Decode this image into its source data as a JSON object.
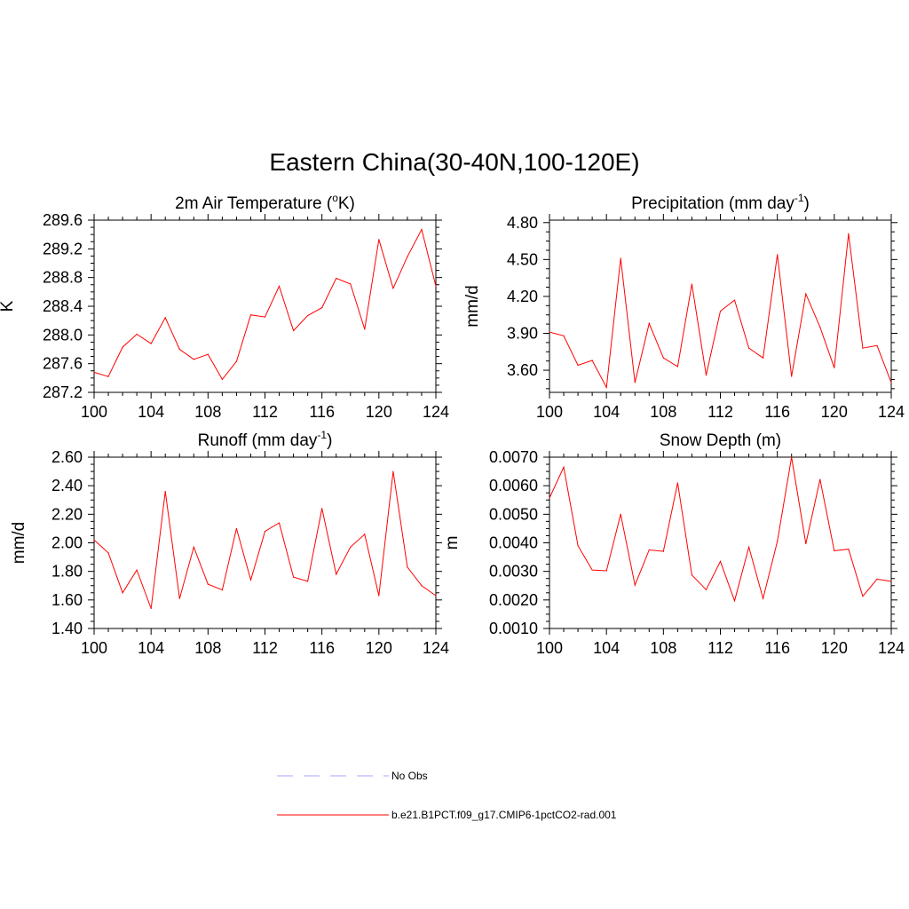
{
  "title": "Eastern China(30-40N,100-120E)",
  "chart_data": [
    {
      "type": "line",
      "title": "2m Air Temperature (",
      "title_sup": "o",
      "title_after": "K)",
      "xlabel": "",
      "ylabel": "K",
      "xlim": [
        100,
        124
      ],
      "ylim": [
        287.2,
        289.6
      ],
      "xticks": [
        "100",
        "104",
        "108",
        "112",
        "116",
        "120",
        "124"
      ],
      "yticks": [
        "287.2",
        "287.6",
        "288.0",
        "288.4",
        "288.8",
        "289.2",
        "289.6"
      ],
      "x": [
        100,
        101,
        102,
        103,
        104,
        105,
        106,
        107,
        108,
        109,
        110,
        111,
        112,
        113,
        114,
        115,
        116,
        117,
        118,
        119,
        120,
        121,
        122,
        123,
        124
      ],
      "series": [
        {
          "values": [
            287.48,
            287.42,
            287.83,
            288.01,
            287.88,
            288.24,
            287.8,
            287.66,
            287.73,
            287.38,
            287.63,
            288.28,
            288.25,
            288.68,
            288.06,
            288.27,
            288.38,
            288.79,
            288.71,
            288.08,
            289.33,
            288.65,
            289.09,
            289.47,
            288.68
          ],
          "color": "#ff0000"
        }
      ]
    },
    {
      "type": "line",
      "title": "Precipitation (mm day",
      "title_sup": "-1",
      "title_after": ")",
      "xlabel": "",
      "ylabel": "mm/d",
      "xlim": [
        100,
        124
      ],
      "ylim": [
        3.42,
        4.82
      ],
      "xticks": [
        "100",
        "104",
        "108",
        "112",
        "116",
        "120",
        "124"
      ],
      "yticks": [
        "3.60",
        "3.90",
        "4.20",
        "4.50",
        "4.80"
      ],
      "x": [
        100,
        101,
        102,
        103,
        104,
        105,
        106,
        107,
        108,
        109,
        110,
        111,
        112,
        113,
        114,
        115,
        116,
        117,
        118,
        119,
        120,
        121,
        122,
        123,
        124
      ],
      "series": [
        {
          "values": [
            3.91,
            3.88,
            3.64,
            3.68,
            3.46,
            4.51,
            3.5,
            3.98,
            3.7,
            3.63,
            4.3,
            3.56,
            4.08,
            4.17,
            3.78,
            3.7,
            4.54,
            3.55,
            4.22,
            3.95,
            3.62,
            4.71,
            3.78,
            3.8,
            3.5
          ],
          "color": "#ff0000"
        }
      ]
    },
    {
      "type": "line",
      "title": "Runoff (mm day",
      "title_sup": "-1",
      "title_after": ")",
      "xlabel": "",
      "ylabel": "mm/d",
      "xlim": [
        100,
        124
      ],
      "ylim": [
        1.4,
        2.6
      ],
      "xticks": [
        "100",
        "104",
        "108",
        "112",
        "116",
        "120",
        "124"
      ],
      "yticks": [
        "1.40",
        "1.60",
        "1.80",
        "2.00",
        "2.20",
        "2.40",
        "2.60"
      ],
      "x": [
        100,
        101,
        102,
        103,
        104,
        105,
        106,
        107,
        108,
        109,
        110,
        111,
        112,
        113,
        114,
        115,
        116,
        117,
        118,
        119,
        120,
        121,
        122,
        123,
        124
      ],
      "series": [
        {
          "values": [
            2.02,
            1.93,
            1.65,
            1.81,
            1.54,
            2.36,
            1.61,
            1.97,
            1.71,
            1.67,
            2.1,
            1.74,
            2.08,
            2.14,
            1.76,
            1.73,
            2.24,
            1.78,
            1.97,
            2.06,
            1.63,
            2.5,
            1.83,
            1.7,
            1.63
          ],
          "color": "#ff0000"
        }
      ]
    },
    {
      "type": "line",
      "title": "Snow Depth (m)",
      "title_sup": "",
      "title_after": "",
      "xlabel": "",
      "ylabel": "m",
      "xlim": [
        100,
        124
      ],
      "ylim": [
        0.001,
        0.007
      ],
      "xticks": [
        "100",
        "104",
        "108",
        "112",
        "116",
        "120",
        "124"
      ],
      "yticks": [
        "0.0010",
        "0.0020",
        "0.0030",
        "0.0040",
        "0.0050",
        "0.0060",
        "0.0070"
      ],
      "x": [
        100,
        101,
        102,
        103,
        104,
        105,
        106,
        107,
        108,
        109,
        110,
        111,
        112,
        113,
        114,
        115,
        116,
        117,
        118,
        119,
        120,
        121,
        122,
        123,
        124
      ],
      "series": [
        {
          "values": [
            0.00557,
            0.00665,
            0.0039,
            0.00305,
            0.00302,
            0.005,
            0.00252,
            0.00375,
            0.0037,
            0.0061,
            0.00287,
            0.00236,
            0.00335,
            0.00197,
            0.00385,
            0.00205,
            0.00405,
            0.007,
            0.00397,
            0.00622,
            0.00372,
            0.00378,
            0.00213,
            0.00273,
            0.00265
          ],
          "color": "#ff0000"
        }
      ]
    }
  ],
  "legend": [
    {
      "label": "No Obs",
      "style": "dashed",
      "color": "#a6a6ff"
    },
    {
      "label": "b.e21.B1PCT.f09_g17.CMIP6-1pctCO2-rad.001",
      "style": "solid",
      "color": "#ff0000"
    }
  ]
}
